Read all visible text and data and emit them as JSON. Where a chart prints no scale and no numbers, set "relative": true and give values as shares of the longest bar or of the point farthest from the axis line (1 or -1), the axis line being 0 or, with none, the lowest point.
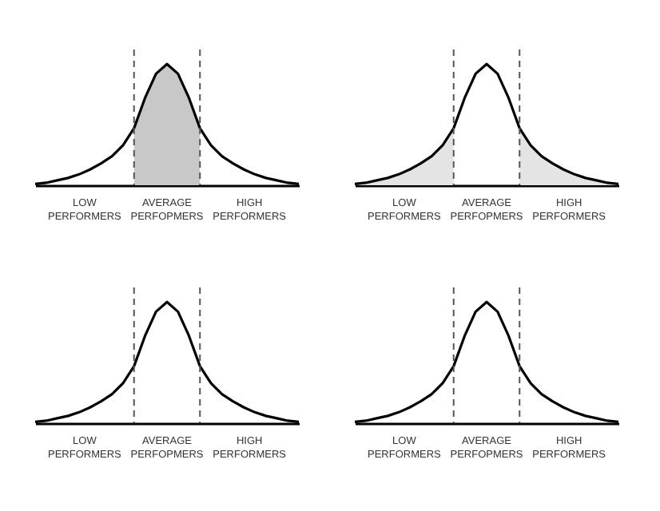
{
  "chart_data": [
    {
      "type": "line",
      "relative": true,
      "tick_labels": false,
      "categories": [
        null,
        null,
        null,
        null,
        null,
        null,
        null,
        null,
        null,
        null,
        null,
        null,
        null,
        null,
        null,
        null,
        null,
        null,
        null,
        null,
        null,
        null,
        null,
        null,
        null
      ],
      "series": [
        {
          "type": "area",
          "color": "#c8c8c8",
          "values": [
            null,
            null,
            null,
            null,
            null,
            null,
            null,
            null,
            null,
            0.47,
            0.72,
            0.92,
            1,
            0.92,
            0.72,
            0.47,
            null,
            null,
            null,
            null,
            null,
            null,
            null,
            null,
            null
          ]
        },
        {
          "color": "#000000",
          "values": [
            0.01,
            0.02,
            0.04,
            0.06,
            0.09,
            0.13,
            0.18,
            0.24,
            0.33,
            0.47,
            0.72,
            0.92,
            1,
            0.92,
            0.72,
            0.47,
            0.33,
            0.24,
            0.18,
            0.13,
            0.09,
            0.06,
            0.04,
            0.02,
            0.01
          ]
        }
      ],
      "annotations": [
        "LOW PERFORMERS",
        "AVERAGE PERFOPMERS",
        "HIGH PERFORMERS"
      ]
    },
    {
      "type": "line",
      "relative": true,
      "tick_labels": false,
      "categories": [
        null,
        null,
        null,
        null,
        null,
        null,
        null,
        null,
        null,
        null,
        null,
        null,
        null,
        null,
        null,
        null,
        null,
        null,
        null,
        null,
        null,
        null,
        null,
        null,
        null
      ],
      "series": [
        {
          "type": "area",
          "color": "#e4e4e4",
          "values": [
            0.01,
            0.02,
            0.04,
            0.06,
            0.09,
            0.13,
            0.18,
            0.24,
            0.33,
            0.47,
            null,
            null,
            null,
            null,
            null,
            0.47,
            0.33,
            0.24,
            0.18,
            0.13,
            0.09,
            0.06,
            0.04,
            0.02,
            0.01
          ]
        },
        {
          "color": "#000000",
          "values": [
            0.01,
            0.02,
            0.04,
            0.06,
            0.09,
            0.13,
            0.18,
            0.24,
            0.33,
            0.47,
            0.72,
            0.92,
            1,
            0.92,
            0.72,
            0.47,
            0.33,
            0.24,
            0.18,
            0.13,
            0.09,
            0.06,
            0.04,
            0.02,
            0.01
          ]
        }
      ],
      "annotations": [
        "LOW PERFORMERS",
        "AVERAGE PERFOPMERS",
        "HIGH PERFORMERS"
      ]
    },
    {
      "type": "line",
      "relative": true,
      "tick_labels": false,
      "categories": [
        null,
        null,
        null,
        null,
        null,
        null,
        null,
        null,
        null,
        null,
        null,
        null,
        null,
        null,
        null,
        null,
        null,
        null,
        null,
        null,
        null,
        null,
        null,
        null,
        null
      ],
      "series": [
        {
          "color": "#000000",
          "values": [
            0.01,
            0.02,
            0.04,
            0.06,
            0.09,
            0.13,
            0.18,
            0.24,
            0.33,
            0.47,
            0.72,
            0.92,
            1,
            0.92,
            0.72,
            0.47,
            0.33,
            0.24,
            0.18,
            0.13,
            0.09,
            0.06,
            0.04,
            0.02,
            0.01
          ]
        }
      ],
      "annotations": [
        "LOW PERFORMERS",
        "AVERAGE PERFOPMERS",
        "HIGH PERFORMERS"
      ]
    },
    {
      "type": "line",
      "relative": true,
      "tick_labels": false,
      "categories": [
        null,
        null,
        null,
        null,
        null,
        null,
        null,
        null,
        null,
        null,
        null,
        null,
        null,
        null,
        null,
        null,
        null,
        null,
        null,
        null,
        null,
        null,
        null,
        null,
        null
      ],
      "series": [
        {
          "color": "#000000",
          "values": [
            0.01,
            0.02,
            0.04,
            0.06,
            0.09,
            0.13,
            0.18,
            0.24,
            0.33,
            0.47,
            0.72,
            0.92,
            1,
            0.92,
            0.72,
            0.47,
            0.33,
            0.24,
            0.18,
            0.13,
            0.09,
            0.06,
            0.04,
            0.02,
            0.01
          ]
        }
      ],
      "annotations": [
        "LOW PERFORMERS",
        "AVERAGE PERFOPMERS",
        "HIGH PERFORMERS"
      ]
    }
  ]
}
